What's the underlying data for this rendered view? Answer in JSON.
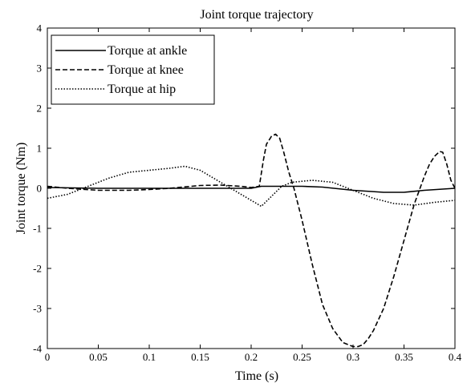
{
  "chart_data": {
    "type": "line",
    "title": "Joint torque trajectory",
    "xlabel": "Time (s)",
    "ylabel": "Joint torque (Nm)",
    "xlim": [
      0,
      0.4
    ],
    "ylim": [
      -4,
      4
    ],
    "x_ticks": [
      0,
      0.05,
      0.1,
      0.15,
      0.2,
      0.25,
      0.3,
      0.35,
      0.4
    ],
    "x_tick_labels": [
      "0",
      "0.05",
      "0.1",
      "0.15",
      "0.2",
      "0.25",
      "0.3",
      "0.35",
      "0.4"
    ],
    "y_ticks": [
      -4,
      -3,
      -2,
      -1,
      0,
      1,
      2,
      3,
      4
    ],
    "y_tick_labels": [
      "-4",
      "-3",
      "-2",
      "-1",
      "0",
      "1",
      "2",
      "3",
      "4"
    ],
    "grid": false,
    "legend_position": "top-left",
    "series": [
      {
        "name": "Torque at ankle",
        "style": "solid",
        "color": "#000000",
        "x": [
          0,
          0.05,
          0.1,
          0.15,
          0.2,
          0.21,
          0.25,
          0.27,
          0.3,
          0.33,
          0.35,
          0.37,
          0.4
        ],
        "y": [
          0.02,
          0.0,
          0.0,
          0.0,
          0.0,
          0.05,
          0.05,
          0.03,
          -0.05,
          -0.1,
          -0.1,
          -0.05,
          0.0
        ]
      },
      {
        "name": "Torque at knee",
        "style": "dashed",
        "color": "#000000",
        "x": [
          0,
          0.02,
          0.05,
          0.08,
          0.1,
          0.12,
          0.15,
          0.17,
          0.19,
          0.2,
          0.208,
          0.212,
          0.215,
          0.22,
          0.224,
          0.228,
          0.232,
          0.237,
          0.242,
          0.25,
          0.26,
          0.27,
          0.28,
          0.29,
          0.3,
          0.305,
          0.31,
          0.315,
          0.32,
          0.33,
          0.34,
          0.35,
          0.36,
          0.37,
          0.375,
          0.38,
          0.385,
          0.388,
          0.392,
          0.396,
          0.4
        ],
        "y": [
          0.05,
          0.0,
          -0.05,
          -0.05,
          -0.03,
          0.0,
          0.07,
          0.08,
          0.05,
          0.02,
          0.05,
          0.7,
          1.1,
          1.3,
          1.35,
          1.25,
          0.9,
          0.4,
          0.0,
          -0.8,
          -1.9,
          -2.9,
          -3.5,
          -3.85,
          -3.95,
          -3.95,
          -3.9,
          -3.75,
          -3.55,
          -3.0,
          -2.2,
          -1.3,
          -0.4,
          0.3,
          0.6,
          0.8,
          0.92,
          0.9,
          0.6,
          0.2,
          0.0
        ]
      },
      {
        "name": "Torque at hip",
        "style": "dotted",
        "color": "#000000",
        "x": [
          0,
          0.02,
          0.04,
          0.06,
          0.08,
          0.1,
          0.12,
          0.135,
          0.15,
          0.17,
          0.19,
          0.2,
          0.21,
          0.22,
          0.23,
          0.24,
          0.26,
          0.28,
          0.3,
          0.32,
          0.34,
          0.36,
          0.38,
          0.4
        ],
        "y": [
          -0.25,
          -0.15,
          0.05,
          0.25,
          0.4,
          0.45,
          0.5,
          0.55,
          0.45,
          0.15,
          -0.15,
          -0.3,
          -0.45,
          -0.2,
          0.05,
          0.15,
          0.2,
          0.15,
          -0.05,
          -0.25,
          -0.38,
          -0.42,
          -0.35,
          -0.3
        ]
      }
    ]
  }
}
